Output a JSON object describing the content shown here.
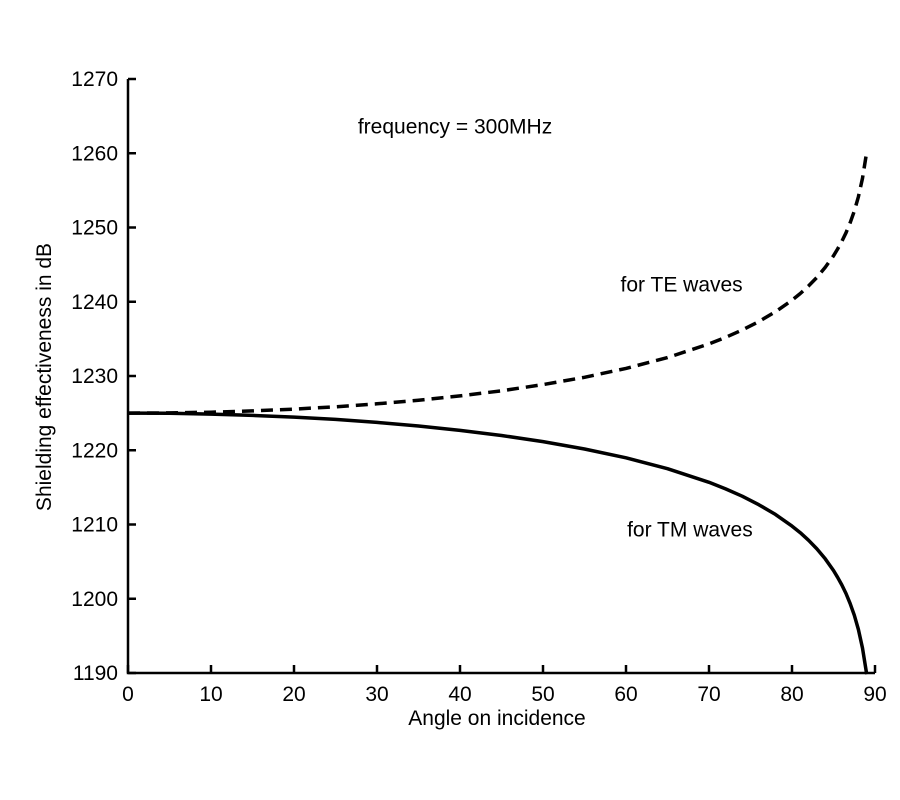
{
  "figure": {
    "background_color": "#ffffff",
    "axis_color": "#000000",
    "text_color": "#000000"
  },
  "chart_data": {
    "type": "line",
    "title": "",
    "xlabel": "Angle on incidence",
    "ylabel": "Shielding effectiveness in dB",
    "xlim": [
      0,
      90
    ],
    "ylim": [
      1190,
      1270
    ],
    "x_ticks": [
      0,
      10,
      20,
      30,
      40,
      50,
      60,
      70,
      80,
      90
    ],
    "y_ticks": [
      1190,
      1200,
      1210,
      1220,
      1230,
      1240,
      1250,
      1260,
      1270
    ],
    "grid": false,
    "legend_position": "none",
    "annotations": [
      {
        "text": "frequency = 300MHz",
        "x": 39.4,
        "y": 1263.5
      },
      {
        "text": "for TE waves",
        "x": 66.7,
        "y": 1242.3
      },
      {
        "text": "for TM waves",
        "x": 67.7,
        "y": 1209.3
      }
    ],
    "x": [
      0,
      5,
      10,
      15,
      20,
      25,
      30,
      35,
      40,
      45,
      50,
      55,
      60,
      65,
      70,
      72,
      74,
      76,
      78,
      80,
      81,
      82,
      83,
      84,
      85,
      85.5,
      86,
      86.5,
      87,
      87.5,
      88,
      88.5,
      89
    ],
    "series": [
      {
        "name": "for TE waves",
        "line_style": "dashed",
        "color": "#000000",
        "values": [
          1225.0,
          1225.03,
          1225.13,
          1225.3,
          1225.54,
          1225.85,
          1226.25,
          1226.73,
          1227.32,
          1228.01,
          1228.84,
          1229.83,
          1231.02,
          1232.48,
          1234.32,
          1235.2,
          1236.19,
          1237.33,
          1238.64,
          1240.21,
          1241.11,
          1242.13,
          1243.28,
          1244.62,
          1246.19,
          1247.11,
          1248.13,
          1249.29,
          1250.62,
          1252.21,
          1254.14,
          1256.64,
          1260.16
        ]
      },
      {
        "name": "for TM waves",
        "line_style": "solid",
        "color": "#000000",
        "values": [
          1225.0,
          1224.97,
          1224.87,
          1224.7,
          1224.46,
          1224.15,
          1223.75,
          1223.27,
          1222.68,
          1221.99,
          1221.16,
          1220.17,
          1218.98,
          1217.52,
          1215.68,
          1214.8,
          1213.81,
          1212.67,
          1211.36,
          1209.79,
          1208.89,
          1207.87,
          1206.72,
          1205.38,
          1203.81,
          1202.89,
          1201.87,
          1200.71,
          1199.38,
          1197.79,
          1195.86,
          1193.36,
          1189.84
        ]
      }
    ]
  }
}
